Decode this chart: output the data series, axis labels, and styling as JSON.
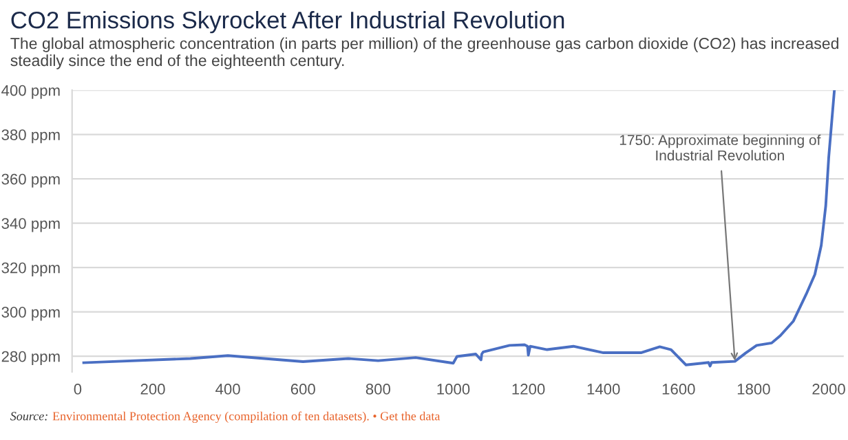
{
  "chart_data": {
    "type": "line",
    "title": "CO2 Emissions Skyrocket After Industrial Revolution",
    "subtitle": "The global atmospheric concentration (in parts per million) of the greenhouse gas carbon dioxide (CO2) has increased steadily since the end of the eighteenth century.",
    "series": [
      {
        "color": "#4a6fc3",
        "x": [
          16,
          300,
          400,
          600,
          720,
          800,
          900,
          1000,
          1010,
          1060,
          1074,
          1076,
          1080,
          1150,
          1190,
          1198,
          1200,
          1205,
          1250,
          1320,
          1400,
          1500,
          1550,
          1580,
          1620,
          1680,
          1684,
          1688,
          1750,
          1779,
          1808,
          1848,
          1871,
          1906,
          1940,
          1963,
          1980,
          1992,
          2000,
          2015
        ],
        "values": [
          277.1,
          279.0,
          280.3,
          277.6,
          279.0,
          278.0,
          279.4,
          276.9,
          279.9,
          281.0,
          278.4,
          281.0,
          282.0,
          284.9,
          285.2,
          284.5,
          280.5,
          284.5,
          283.0,
          284.5,
          281.6,
          281.6,
          284.3,
          283.0,
          276.1,
          277.2,
          275.6,
          277.2,
          277.7,
          281.5,
          284.9,
          286.0,
          289.3,
          295.9,
          308.0,
          316.9,
          330.0,
          347.8,
          369.8,
          400
        ]
      }
    ],
    "xlim": [
      -15,
      2040
    ],
    "ylim": [
      273,
      400
    ],
    "xticks": [
      0,
      200,
      400,
      600,
      800,
      1000,
      1200,
      1400,
      1600,
      1800,
      2000
    ],
    "yticks": [
      {
        "value": 280,
        "label": "280 ppm"
      },
      {
        "value": 300,
        "label": "300 ppm"
      },
      {
        "value": 320,
        "label": "320 ppm"
      },
      {
        "value": 340,
        "label": "340 ppm"
      },
      {
        "value": 360,
        "label": "360 ppm"
      },
      {
        "value": 380,
        "label": "380 ppm"
      },
      {
        "value": 400,
        "label": "400 ppm"
      }
    ],
    "grid": "y",
    "marker": "none",
    "line_style": "solid",
    "annotations": [
      {
        "text": "1750: Approximate beginning of\nIndustrial Revolution",
        "x": 1750,
        "y": 278
      },
      "Source:",
      "Environmental Protection Agency (compilation of ten datasets). • Get the data"
    ]
  }
}
